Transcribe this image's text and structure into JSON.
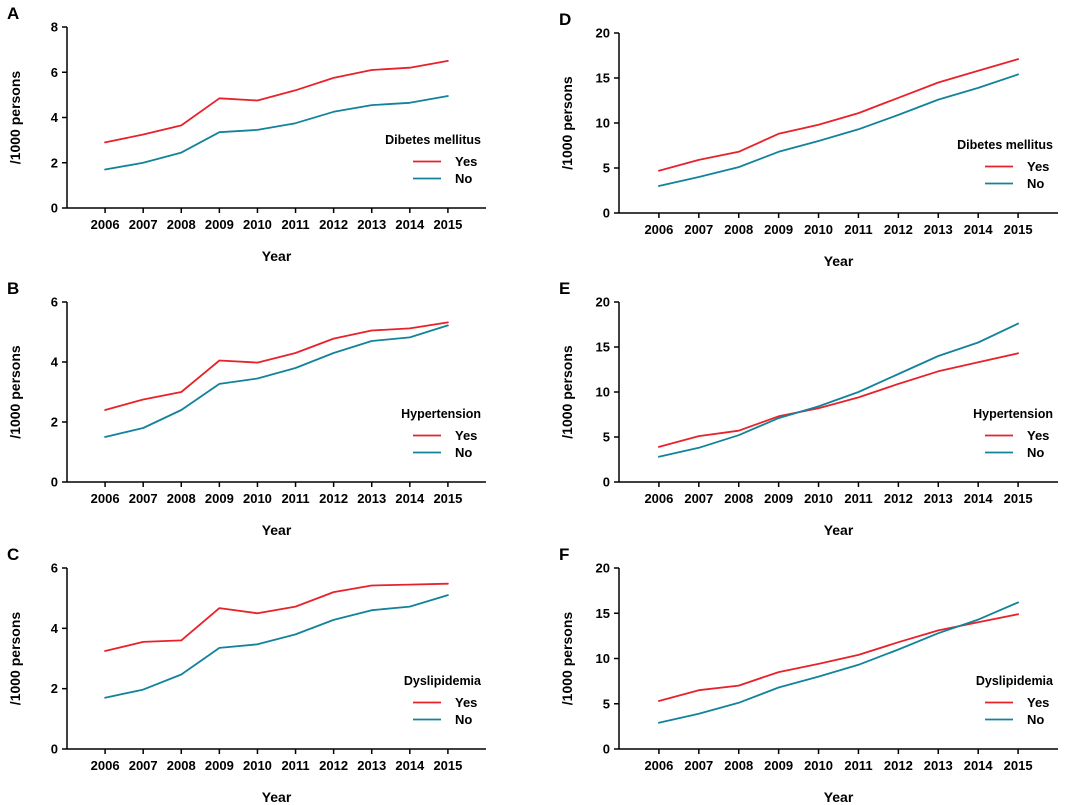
{
  "colors": {
    "yes": "#e8212a",
    "no": "#12839b"
  },
  "chart_data": [
    {
      "panel": "A",
      "type": "line",
      "xlabel": "Year",
      "ylabel": "/1000 persons",
      "ylim": [
        0,
        8
      ],
      "yticks": [
        0,
        2,
        4,
        6,
        8
      ],
      "categories": [
        "2006",
        "2007",
        "2008",
        "2009",
        "2010",
        "2011",
        "2012",
        "2013",
        "2014",
        "2015"
      ],
      "legend_title": "Dibetes mellitus",
      "series": [
        {
          "name": "Yes",
          "values": [
            2.9,
            3.25,
            3.65,
            4.85,
            4.75,
            5.2,
            5.75,
            6.1,
            6.2,
            6.5
          ]
        },
        {
          "name": "No",
          "values": [
            1.7,
            2.0,
            2.45,
            3.35,
            3.45,
            3.75,
            4.25,
            4.55,
            4.65,
            4.95
          ]
        }
      ]
    },
    {
      "panel": "B",
      "type": "line",
      "xlabel": "Year",
      "ylabel": "/1000 persons",
      "ylim": [
        0,
        6
      ],
      "yticks": [
        0,
        2,
        4,
        6
      ],
      "categories": [
        "2006",
        "2007",
        "2008",
        "2009",
        "2010",
        "2011",
        "2012",
        "2013",
        "2014",
        "2015"
      ],
      "legend_title": "Hypertension",
      "series": [
        {
          "name": "Yes",
          "values": [
            2.4,
            2.75,
            3.0,
            4.05,
            3.98,
            4.3,
            4.78,
            5.05,
            5.12,
            5.32
          ]
        },
        {
          "name": "No",
          "values": [
            1.5,
            1.8,
            2.4,
            3.27,
            3.45,
            3.8,
            4.3,
            4.7,
            4.82,
            5.22
          ]
        }
      ]
    },
    {
      "panel": "C",
      "type": "line",
      "xlabel": "Year",
      "ylabel": "/1000 persons",
      "ylim": [
        0,
        6
      ],
      "yticks": [
        0,
        2,
        4,
        6
      ],
      "categories": [
        "2006",
        "2007",
        "2008",
        "2009",
        "2010",
        "2011",
        "2012",
        "2013",
        "2014",
        "2015"
      ],
      "legend_title": "Dyslipidemia",
      "series": [
        {
          "name": "Yes",
          "values": [
            3.25,
            3.55,
            3.6,
            4.67,
            4.5,
            4.72,
            5.2,
            5.42,
            5.45,
            5.48
          ]
        },
        {
          "name": "No",
          "values": [
            1.7,
            1.97,
            2.47,
            3.35,
            3.47,
            3.8,
            4.28,
            4.6,
            4.72,
            5.1
          ]
        }
      ]
    },
    {
      "panel": "D",
      "type": "line",
      "xlabel": "Year",
      "ylabel": "/1000 persons",
      "ylim": [
        0,
        20
      ],
      "yticks": [
        0,
        5,
        10,
        15,
        20
      ],
      "categories": [
        "2006",
        "2007",
        "2008",
        "2009",
        "2010",
        "2011",
        "2012",
        "2013",
        "2014",
        "2015"
      ],
      "legend_title": "Dibetes mellitus",
      "series": [
        {
          "name": "Yes",
          "values": [
            4.7,
            5.9,
            6.8,
            8.8,
            9.8,
            11.1,
            12.8,
            14.5,
            15.8,
            17.1
          ]
        },
        {
          "name": "No",
          "values": [
            3.0,
            4.0,
            5.1,
            6.8,
            8.0,
            9.3,
            10.9,
            12.6,
            13.9,
            15.4
          ]
        }
      ]
    },
    {
      "panel": "E",
      "type": "line",
      "xlabel": "Year",
      "ylabel": "/1000 persons",
      "ylim": [
        0,
        20
      ],
      "yticks": [
        0,
        5,
        10,
        15,
        20
      ],
      "categories": [
        "2006",
        "2007",
        "2008",
        "2009",
        "2010",
        "2011",
        "2012",
        "2013",
        "2014",
        "2015"
      ],
      "legend_title": "Hypertension",
      "series": [
        {
          "name": "Yes",
          "values": [
            3.9,
            5.1,
            5.7,
            7.3,
            8.2,
            9.4,
            10.9,
            12.3,
            13.3,
            14.3
          ]
        },
        {
          "name": "No",
          "values": [
            2.8,
            3.8,
            5.2,
            7.1,
            8.4,
            10.0,
            12.0,
            14.0,
            15.5,
            17.6
          ]
        }
      ]
    },
    {
      "panel": "F",
      "type": "line",
      "xlabel": "Year",
      "ylabel": "/1000 persons",
      "ylim": [
        0,
        20
      ],
      "yticks": [
        0,
        5,
        10,
        15,
        20
      ],
      "categories": [
        "2006",
        "2007",
        "2008",
        "2009",
        "2010",
        "2011",
        "2012",
        "2013",
        "2014",
        "2015"
      ],
      "legend_title": "Dyslipidemia",
      "series": [
        {
          "name": "Yes",
          "values": [
            5.3,
            6.5,
            7.0,
            8.5,
            9.4,
            10.4,
            11.8,
            13.1,
            14.0,
            14.9
          ]
        },
        {
          "name": "No",
          "values": [
            2.9,
            3.9,
            5.1,
            6.8,
            8.0,
            9.3,
            11.0,
            12.8,
            14.3,
            16.2
          ]
        }
      ]
    }
  ]
}
